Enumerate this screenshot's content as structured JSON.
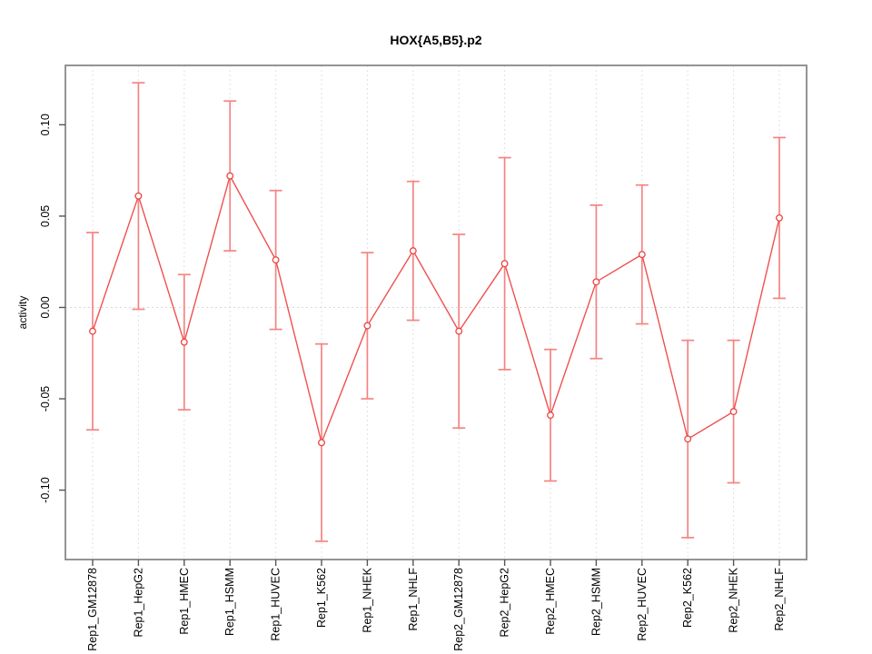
{
  "title": "HOX{A5,B5}.p2",
  "chart_data": {
    "type": "line",
    "title": "HOX{A5,B5}.p2",
    "xlabel": "",
    "ylabel": "activity",
    "categories": [
      "Rep1_GM12878",
      "Rep1_HepG2",
      "Rep1_HMEC",
      "Rep1_HSMM",
      "Rep1_HUVEC",
      "Rep1_K562",
      "Rep1_NHEK",
      "Rep1_NHLF",
      "Rep2_GM12878",
      "Rep2_HepG2",
      "Rep2_HMEC",
      "Rep2_HSMM",
      "Rep2_HUVEC",
      "Rep2_K562",
      "Rep2_NHEK",
      "Rep2_NHLF"
    ],
    "series": [
      {
        "name": "activity",
        "marker": "open-circle",
        "values": [
          -0.013,
          0.061,
          -0.019,
          0.072,
          0.026,
          -0.074,
          -0.01,
          0.031,
          -0.013,
          0.024,
          -0.059,
          0.014,
          0.029,
          -0.072,
          -0.057,
          0.049
        ],
        "lower": [
          -0.067,
          -0.001,
          -0.056,
          0.031,
          -0.012,
          -0.128,
          -0.05,
          -0.007,
          -0.066,
          -0.034,
          -0.095,
          -0.028,
          -0.009,
          -0.126,
          -0.096,
          0.005
        ],
        "upper": [
          0.041,
          0.123,
          0.018,
          0.113,
          0.064,
          -0.02,
          0.03,
          0.069,
          0.04,
          0.082,
          -0.023,
          0.056,
          0.067,
          -0.018,
          -0.018,
          0.093
        ]
      }
    ],
    "ylim": [
      -0.138,
      0.1325
    ],
    "yticks": [
      -0.1,
      -0.05,
      0.0,
      0.05,
      0.1
    ],
    "ytick_labels": [
      "-0.10",
      "-0.05",
      "0.00",
      "0.05",
      "0.10"
    ],
    "legend": "none",
    "grid": {
      "vertical_gridlines": "dotted, one per category",
      "horizontal_zero_line": "dotted"
    },
    "colors": {
      "series_line": "#ee5150",
      "error_bar": "#f48482",
      "point_stroke": "#ec4341",
      "grid_line": "#e2e2e2",
      "zero_line": "#d9d9d9",
      "plot_border": "#828282",
      "tick": "#555555",
      "text": "#000000",
      "background": "#ffffff"
    }
  }
}
